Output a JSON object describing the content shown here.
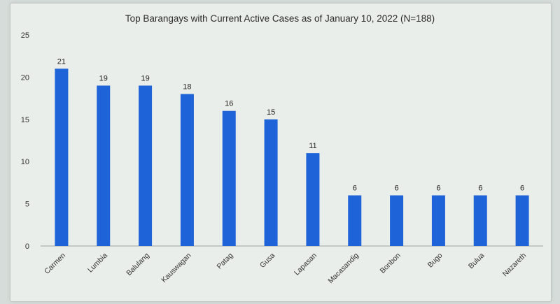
{
  "chart_data": {
    "type": "bar",
    "title": "Top Barangays with Current Active Cases as of January 10, 2022 (N=188)",
    "xlabel": "",
    "ylabel": "",
    "categories": [
      "Carmen",
      "Lumbia",
      "Balulang",
      "Kauswagan",
      "Patag",
      "Gusa",
      "Lapasan",
      "Macasandig",
      "Bonbon",
      "Bugo",
      "Bulua",
      "Nazareth"
    ],
    "values": [
      21,
      19,
      19,
      18,
      16,
      15,
      11,
      6,
      6,
      6,
      6,
      6
    ],
    "ylim": [
      0,
      25
    ],
    "yticks": [
      0,
      5,
      10,
      15,
      20,
      25
    ],
    "grid": false,
    "legend": "none",
    "colors": {
      "bar": "#1f63d8",
      "axis": "#9aa39f",
      "background": "#e9eeea"
    }
  }
}
